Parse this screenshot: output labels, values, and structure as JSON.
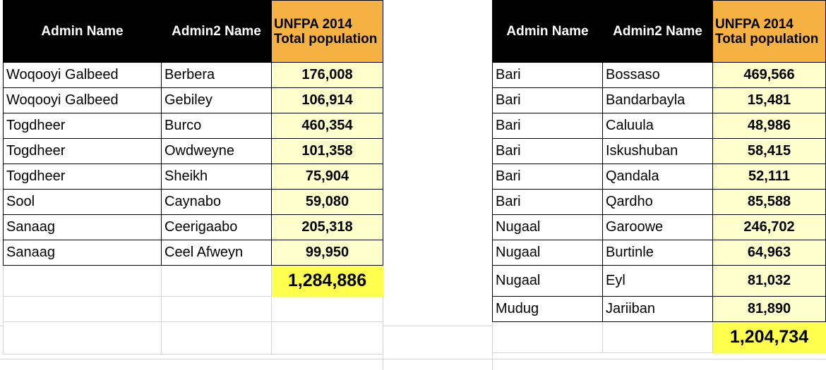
{
  "left_table": {
    "headers": {
      "admin": "Admin Name",
      "admin2": "Admin2 Name",
      "pop": "UNFPA 2014 Total population"
    },
    "rows": [
      {
        "admin": "Woqooyi Galbeed",
        "admin2": "Berbera",
        "pop": "176,008"
      },
      {
        "admin": "Woqooyi Galbeed",
        "admin2": "Gebiley",
        "pop": "106,914"
      },
      {
        "admin": "Togdheer",
        "admin2": "Burco",
        "pop": "460,354"
      },
      {
        "admin": "Togdheer",
        "admin2": "Owdweyne",
        "pop": "101,358"
      },
      {
        "admin": "Togdheer",
        "admin2": "Sheikh",
        "pop": "75,904"
      },
      {
        "admin": "Sool",
        "admin2": "Caynabo",
        "pop": "59,080"
      },
      {
        "admin": "Sanaag",
        "admin2": "Ceerigaabo",
        "pop": "205,318"
      },
      {
        "admin": "Sanaag",
        "admin2": "Ceel Afweyn",
        "pop": "99,950"
      }
    ],
    "total": "1,284,886"
  },
  "right_table": {
    "headers": {
      "admin": "Admin Name",
      "admin2": "Admin2 Name",
      "pop": "UNFPA 2014 Total population"
    },
    "rows": [
      {
        "admin": "Bari",
        "admin2": "Bossaso",
        "pop": "469,566"
      },
      {
        "admin": "Bari",
        "admin2": "Bandarbayla",
        "pop": "15,481"
      },
      {
        "admin": "Bari",
        "admin2": "Caluula",
        "pop": "48,986"
      },
      {
        "admin": "Bari",
        "admin2": "Iskushuban",
        "pop": "58,415"
      },
      {
        "admin": "Bari",
        "admin2": "Qandala",
        "pop": "52,111"
      },
      {
        "admin": "Bari",
        "admin2": "Qardho",
        "pop": "85,588"
      },
      {
        "admin": "Nugaal",
        "admin2": "Garoowe",
        "pop": "246,702"
      },
      {
        "admin": "Nugaal",
        "admin2": "Burtinle",
        "pop": "64,963"
      },
      {
        "admin": "Nugaal",
        "admin2": "Eyl",
        "pop": "81,032"
      },
      {
        "admin": "Mudug",
        "admin2": "Jariiban",
        "pop": "81,890"
      }
    ],
    "total": "1,204,734"
  }
}
